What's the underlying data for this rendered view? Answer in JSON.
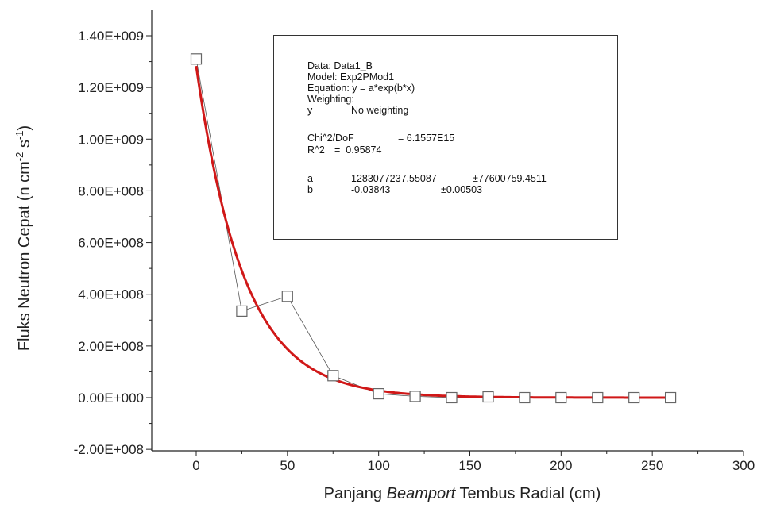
{
  "chart_data": {
    "type": "scatter",
    "xlabel_parts": [
      "Panjang ",
      "Beamport",
      " Tembus Radial (cm)"
    ],
    "ylabel_parts": [
      "Fluks Neutron Cepat (n cm",
      "-2",
      " s",
      "-1",
      ")"
    ],
    "x_ticks": [
      "0",
      "50",
      "100",
      "150",
      "200",
      "250",
      "300"
    ],
    "y_ticks": [
      "-2.00E+008",
      "0.00E+000",
      "2.00E+008",
      "4.00E+008",
      "6.00E+008",
      "8.00E+008",
      "1.00E+009",
      "1.20E+009",
      "1.40E+009"
    ],
    "xlim": [
      -20,
      300
    ],
    "ylim": [
      -200000000,
      1450000000
    ],
    "series": [
      {
        "kind": "data",
        "marker": "open-square",
        "x": [
          0,
          25,
          50,
          75,
          100,
          120,
          140,
          160,
          180,
          200,
          220,
          240,
          260
        ],
        "y": [
          1310000000,
          335000000,
          392000000,
          85000000,
          15000000,
          5000000,
          0,
          3000000,
          0,
          0,
          0,
          0,
          0
        ]
      },
      {
        "kind": "fit",
        "equation": "y = a*exp(b*x)",
        "a": 1283077237.55087,
        "b": -0.03843,
        "color": "#d01818"
      }
    ],
    "fit_box": {
      "data": "Data: Data1_B",
      "model": "Model: Exp2PMod1",
      "equation": "Equation: y = a*exp(b*x)",
      "weighting": "Weighting:",
      "y_label": "y",
      "y_weight": "No weighting",
      "chi_label": "Chi^2/DoF",
      "chi_value": "= 6.1557E15",
      "r2_label": "R^2",
      "r2_value": "=  0.95874",
      "a_label": "a",
      "a_value": "1283077237.55087",
      "a_err": "±77600759.4511",
      "b_label": "b",
      "b_value": "-0.03843",
      "b_err": "±0.00503"
    }
  }
}
